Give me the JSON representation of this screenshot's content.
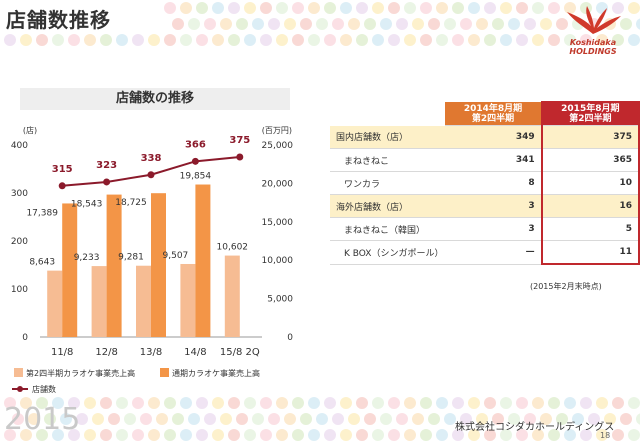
{
  "page": {
    "title": "店舗数推移",
    "year": "2015",
    "company": "株式会社コシダカホールディングス",
    "page_number": "18",
    "logo_text_line1": "Koshidaka",
    "logo_text_line2": "HOLDINGS"
  },
  "chart_data": {
    "type": "bar",
    "title": "店舗数の推移",
    "left_unit": "(店)",
    "right_unit": "(百万円)",
    "categories": [
      "11/8",
      "12/8",
      "13/8",
      "14/8",
      "15/8 2Q"
    ],
    "ylim_left": [
      0,
      400
    ],
    "yticks_left": [
      "0",
      "100",
      "200",
      "300",
      "400"
    ],
    "ylim_right": [
      0,
      25000
    ],
    "yticks_right": [
      "0",
      "5,000",
      "10,000",
      "15,000",
      "20,000",
      "25,000"
    ],
    "series": [
      {
        "name": "第2四半期カラオケ事業売上高",
        "kind": "bar",
        "axis": "right",
        "color": "#f6bc93",
        "values": [
          8643,
          9233,
          9281,
          9507,
          10602
        ],
        "labels": [
          "8,643",
          "9,233",
          "9,281",
          "9,507",
          "10,602"
        ]
      },
      {
        "name": "通期カラオケ事業売上高",
        "kind": "bar",
        "axis": "right",
        "color": "#f39547",
        "values": [
          17389,
          18543,
          18725,
          19854,
          null
        ],
        "labels": [
          "17,389",
          "18,543",
          "18,725",
          "19,854",
          ""
        ]
      },
      {
        "name": "店舗数",
        "kind": "line",
        "axis": "left",
        "color": "#8b1a2b",
        "values": [
          315,
          323,
          338,
          366,
          375
        ],
        "labels": [
          "315",
          "323",
          "338",
          "366",
          "375"
        ]
      }
    ],
    "legend_position": "bottom"
  },
  "table": {
    "header_2014": [
      "2014年8月期",
      "第2四半期"
    ],
    "header_2015": [
      "2015年8月期",
      "第2四半期"
    ],
    "rows": [
      {
        "label": "国内店舗数（店）",
        "v2014": "349",
        "v2015": "375",
        "kind": "main"
      },
      {
        "label": "まねきねこ",
        "v2014": "341",
        "v2015": "365",
        "kind": "sub"
      },
      {
        "label": "ワンカラ",
        "v2014": "8",
        "v2015": "10",
        "kind": "sub"
      },
      {
        "label": "海外店舗数（店）",
        "v2014": "3",
        "v2015": "16",
        "kind": "main"
      },
      {
        "label": "まねきねこ（韓国）",
        "v2014": "3",
        "v2015": "5",
        "kind": "sub"
      },
      {
        "label": "K BOX（シンガポール）",
        "v2014": "—",
        "v2015": "11",
        "kind": "sub"
      }
    ],
    "footnote": "(2015年2月末時点)"
  }
}
